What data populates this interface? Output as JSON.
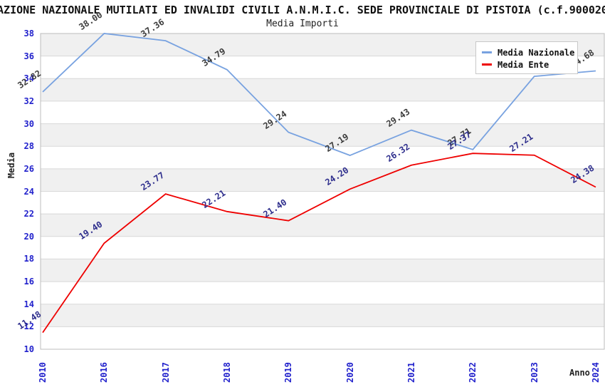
{
  "title": "AZIONE NAZIONALE MUTILATI ED INVALIDI CIVILI A.N.M.I.C. SEDE PROVINCIALE DI PISTOIA (c.f.900020",
  "subtitle": "Media Importi",
  "axes": {
    "y_title": "Media",
    "x_title": "Anno"
  },
  "colors": {
    "band_gray": "#f0f0f0",
    "band_white": "#ffffff",
    "gridline": "#d8d8d8",
    "plot_border": "#bcbcbc",
    "tick_label": "#2121cc",
    "nazionale_line": "#78a2e0",
    "ente_line": "#ee0000",
    "nazionale_value_label": "#3c3c3c",
    "ente_value_label": "#2d2d8c"
  },
  "chart_data": {
    "type": "line",
    "title": "Media Importi",
    "xlabel": "Anno",
    "ylabel": "Media",
    "ylim": [
      10,
      38
    ],
    "ytick_step": 2,
    "grid": "horizontal-bands",
    "legend_position": "top-right",
    "categories": [
      "2010",
      "2016",
      "2017",
      "2018",
      "2019",
      "2020",
      "2021",
      "2022",
      "2023",
      "2024"
    ],
    "series": [
      {
        "name": "Media Nazionale",
        "color": "#78a2e0",
        "label_color": "#3c3c3c",
        "values": [
          32.82,
          38.0,
          37.36,
          34.79,
          29.24,
          27.19,
          29.43,
          27.71,
          34.2,
          34.68
        ],
        "labels": [
          "32.82",
          "38.00",
          "37.36",
          "34.79",
          "29.24",
          "27.19",
          "29.43",
          "27.71",
          "",
          "34.68"
        ]
      },
      {
        "name": "Media Ente",
        "color": "#ee0000",
        "label_color": "#2d2d8c",
        "values": [
          11.48,
          19.4,
          23.77,
          22.21,
          21.4,
          24.2,
          26.32,
          27.37,
          27.21,
          24.38
        ],
        "labels": [
          "11.48",
          "19.40",
          "23.77",
          "22.21",
          "21.40",
          "24.20",
          "26.32",
          "27.37",
          "27.21",
          "24.38"
        ]
      }
    ]
  }
}
